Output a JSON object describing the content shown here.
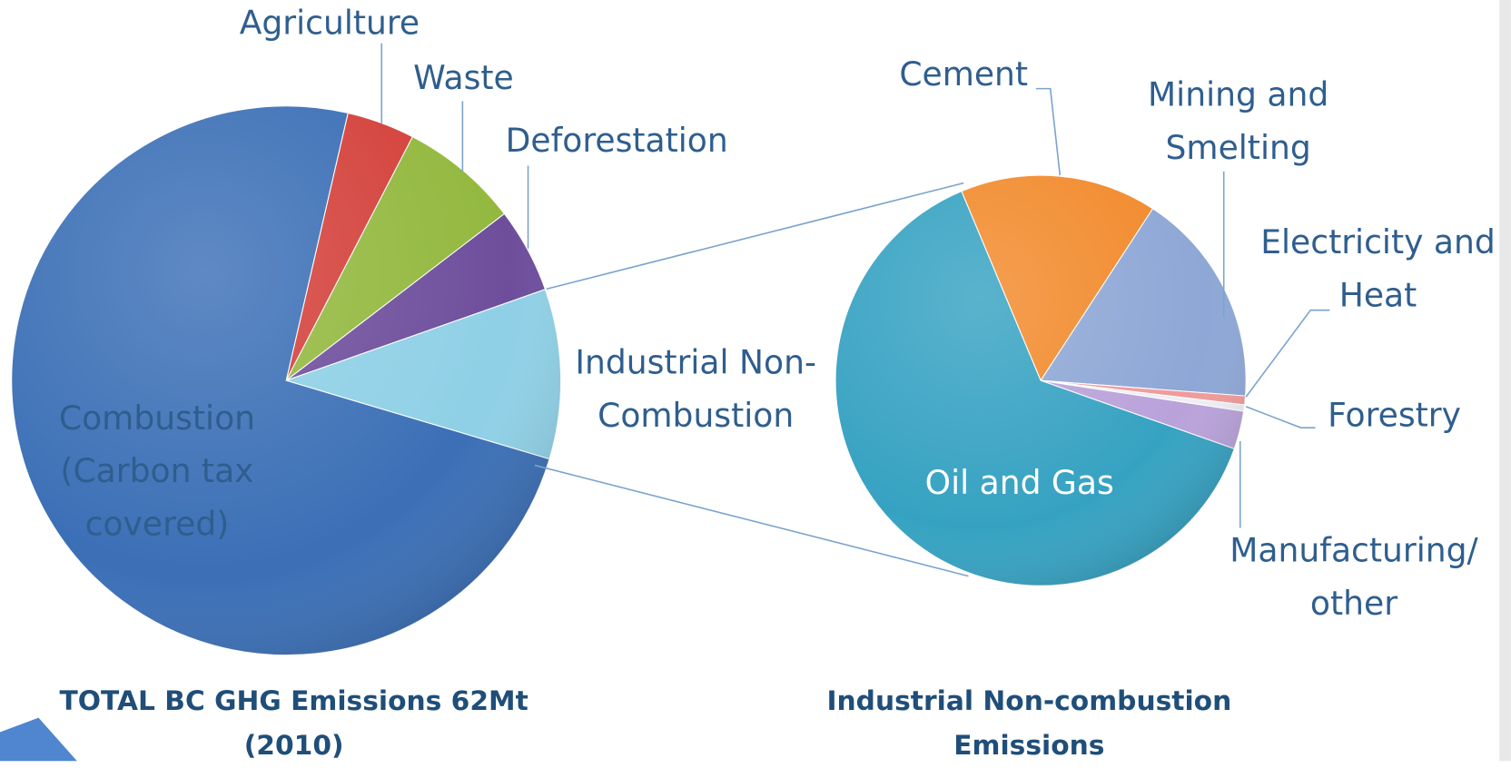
{
  "chart_data": [
    {
      "type": "pie",
      "title": "TOTAL BC GHG Emissions 62Mt (2010)",
      "categories": [
        "Agriculture",
        "Waste",
        "Deforestation",
        "Industrial Non-Combustion",
        "Combustion (Carbon tax covered)"
      ],
      "values": [
        4,
        7,
        5,
        10,
        74
      ],
      "colors": [
        "#d4403a",
        "#93b83e",
        "#6e4e9c",
        "#8fd0e6",
        "#3b6fb6"
      ]
    },
    {
      "type": "pie",
      "title": "Industrial Non-combustion Emissions",
      "categories": [
        "Cement",
        "Mining and Smelting",
        "Electricity and Heat",
        "Forestry",
        "Manufacturing/ other",
        "Oil and Gas"
      ],
      "values": [
        15.5,
        17,
        0.7,
        0.5,
        3,
        63.3
      ],
      "colors": [
        "#f28a2c",
        "#8ea7d6",
        "#f09a9a",
        "#eeeef6",
        "#b9a2da",
        "#36a2c2"
      ]
    }
  ]
}
